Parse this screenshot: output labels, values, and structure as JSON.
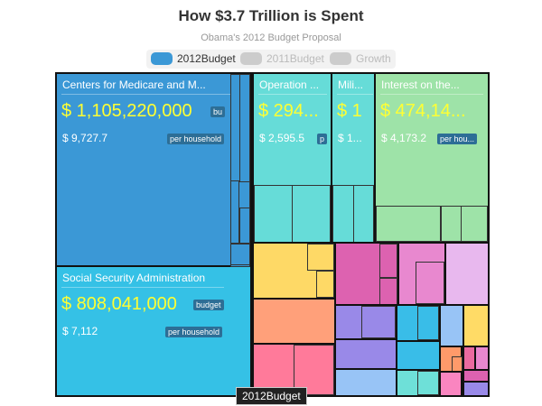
{
  "title": "How $3.7 Trillion is Spent",
  "subtitle": "Obama's 2012 Budget Proposal",
  "legend": [
    {
      "label": "2012Budget",
      "color": "#3b98d6",
      "active": true
    },
    {
      "label": "2011Budget",
      "color": "#cccccc",
      "active": false
    },
    {
      "label": "Growth",
      "color": "#cccccc",
      "active": false
    }
  ],
  "tooltip": "2012Budget",
  "chart_data": {
    "type": "treemap",
    "title": "How $3.7 Trillion is Spent",
    "subtitle": "Obama's 2012 Budget Proposal",
    "metric": "2012Budget",
    "nodes": [
      {
        "name": "Centers for Medicare and M...",
        "amount": "$ 1,105,220,000",
        "tag": "bu",
        "per_household": "$ 9,727.7",
        "per_household_tag": "per household",
        "color": "#3b98d6"
      },
      {
        "name": "Social Security Administration",
        "amount": "$ 808,041,000",
        "tag": "budget",
        "per_household": "$ 7,112",
        "per_household_tag": "per household",
        "color": "#35c1e6"
      },
      {
        "name": "Operation ...",
        "amount": "$ 294...",
        "tag": "",
        "per_household": "$ 2,595.5",
        "per_household_tag": "p",
        "color": "#66dcd8"
      },
      {
        "name": "Mili...",
        "amount": "$ 1",
        "tag": "",
        "per_household": "$ 1...",
        "per_household_tag": "",
        "color": "#66dcd8"
      },
      {
        "name": "Interest on the...",
        "amount": "$ 474,14...",
        "tag": "",
        "per_household": "$ 4,173.2",
        "per_household_tag": "per hou...",
        "color": "#9ee3a8"
      }
    ],
    "minor_groups": [
      {
        "color": "#fed966"
      },
      {
        "color": "#ffa07a"
      },
      {
        "color": "#ff7a9a"
      },
      {
        "color": "#dd62b0"
      },
      {
        "color": "#e888cf"
      },
      {
        "color": "#e8b8ee"
      },
      {
        "color": "#9989e8"
      },
      {
        "color": "#39bde8"
      },
      {
        "color": "#98c4f6"
      },
      {
        "color": "#6ee0d8"
      },
      {
        "color": "#ff9a6a"
      },
      {
        "color": "#fa85c0"
      },
      {
        "color": "#ffdb66"
      },
      {
        "color": "#ea6aa0"
      }
    ]
  }
}
